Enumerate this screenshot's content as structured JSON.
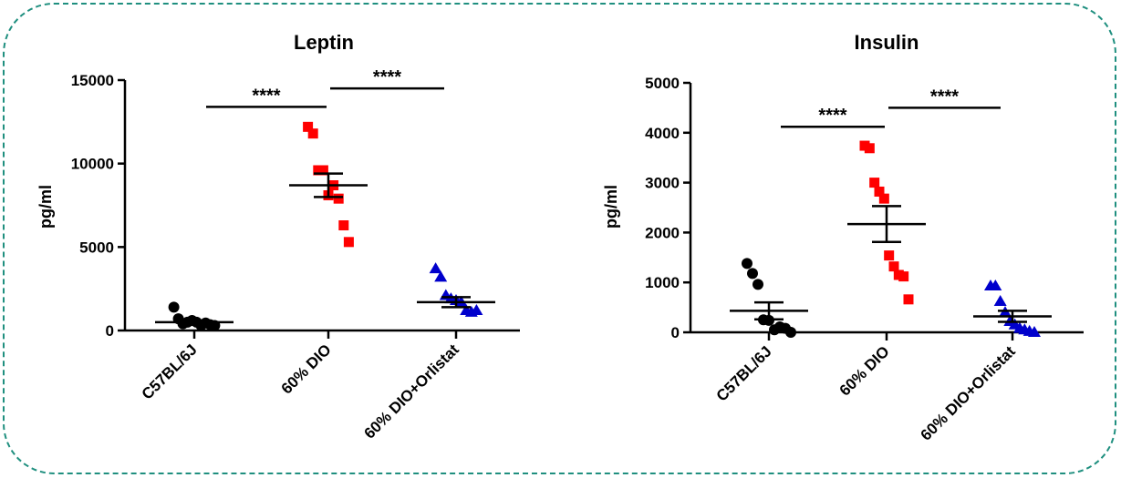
{
  "chart_data": [
    {
      "type": "scatter",
      "title": "Leptin",
      "ylabel": "pg/ml",
      "xlabel": "",
      "ylim": [
        0,
        15000
      ],
      "yticks": [
        "0",
        "5000",
        "10000",
        "15000"
      ],
      "ytick_values": [
        0,
        5000,
        10000,
        15000
      ],
      "categories": [
        "C57BL/6J",
        "60% DIO",
        "60% DIO+Orlistat"
      ],
      "series": [
        {
          "name": "C57BL/6J",
          "marker": "circle",
          "color": "#000000",
          "values": [
            1400,
            700,
            400,
            500,
            600,
            500,
            300,
            450,
            350,
            300
          ],
          "mean": 500,
          "sem": 100
        },
        {
          "name": "60% DIO",
          "marker": "square",
          "color": "#ff0000",
          "values": [
            12200,
            11800,
            9600,
            9600,
            8100,
            8700,
            7900,
            6300,
            5300
          ],
          "mean": 8700,
          "sem": 700
        },
        {
          "name": "60% DIO+Orlistat",
          "marker": "triangle",
          "color": "#0000cc",
          "values": [
            3700,
            3200,
            2100,
            1900,
            1800,
            1700,
            1200,
            1100,
            1200
          ],
          "mean": 1700,
          "sem": 300
        }
      ],
      "significance": [
        {
          "from": 0,
          "to": 1,
          "label": "****",
          "y": 13400
        },
        {
          "from": 1,
          "to": 2,
          "label": "****",
          "y": 14500
        }
      ]
    },
    {
      "type": "scatter",
      "title": "Insulin",
      "ylabel": "pg/ml",
      "xlabel": "",
      "ylim": [
        0,
        5000
      ],
      "yticks": [
        "0",
        "1000",
        "2000",
        "3000",
        "4000",
        "5000"
      ],
      "ytick_values": [
        0,
        1000,
        2000,
        3000,
        4000,
        5000
      ],
      "categories": [
        "C57BL/6J",
        "60% DIO",
        "60% DIO+Orlistat"
      ],
      "series": [
        {
          "name": "C57BL/6J",
          "marker": "circle",
          "color": "#000000",
          "values": [
            1380,
            1180,
            960,
            250,
            240,
            50,
            110,
            80,
            0
          ],
          "mean": 430,
          "sem": 170
        },
        {
          "name": "60% DIO",
          "marker": "square",
          "color": "#ff0000",
          "values": [
            3740,
            3690,
            3000,
            2820,
            2680,
            1540,
            1320,
            1150,
            1120,
            660
          ],
          "mean": 2170,
          "sem": 360
        },
        {
          "name": "60% DIO+Orlistat",
          "marker": "triangle",
          "color": "#0000cc",
          "values": [
            930,
            930,
            620,
            400,
            220,
            150,
            80,
            50,
            20,
            0
          ],
          "mean": 320,
          "sem": 110
        }
      ],
      "significance": [
        {
          "from": 0,
          "to": 1,
          "label": "****",
          "y": 4120
        },
        {
          "from": 1,
          "to": 2,
          "label": "****",
          "y": 4500
        }
      ]
    }
  ]
}
